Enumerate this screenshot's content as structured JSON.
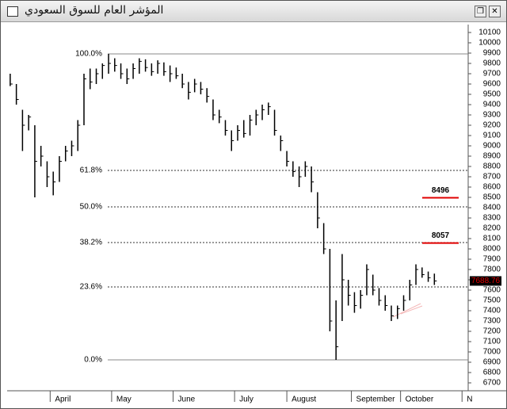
{
  "chart_data": {
    "type": "ohlc",
    "title": "المؤشر العام للسوق السعودي",
    "ylim": [
      6623,
      10177
    ],
    "yticks": [
      6700,
      6800,
      6900,
      7000,
      7100,
      7200,
      7300,
      7400,
      7500,
      7600,
      7700,
      7800,
      7900,
      8000,
      8100,
      8200,
      8300,
      8400,
      8500,
      8600,
      8700,
      8800,
      8900,
      9000,
      9100,
      9200,
      9300,
      9400,
      9500,
      9600,
      9700,
      9800,
      9900,
      10000,
      10100
    ],
    "xlim": [
      -0.5,
      74.5
    ],
    "xticks": [
      {
        "value": 6.5,
        "label": "April"
      },
      {
        "value": 16.5,
        "label": "May"
      },
      {
        "value": 26.5,
        "label": "June"
      },
      {
        "value": 36.5,
        "label": "July"
      },
      {
        "value": 45,
        "label": "August"
      },
      {
        "value": 55.5,
        "label": "September"
      },
      {
        "value": 63.5,
        "label": "October"
      },
      {
        "value": 73.5,
        "label": "N"
      }
    ],
    "bar_color": "#000000",
    "high": [
      9700,
      9600,
      9350,
      9300,
      9200,
      9000,
      8850,
      8750,
      8900,
      9000,
      9050,
      9250,
      9700,
      9750,
      9750,
      9800,
      9892,
      9850,
      9800,
      9750,
      9800,
      9850,
      9840,
      9800,
      9830,
      9810,
      9780,
      9760,
      9700,
      9620,
      9650,
      9620,
      9560,
      9450,
      9350,
      9250,
      9150,
      9200,
      9250,
      9300,
      9350,
      9400,
      9420,
      9350,
      9100,
      8950,
      8850,
      8800,
      8850,
      8800,
      8550,
      8250,
      8000,
      7500,
      7950,
      7700,
      7580,
      7600,
      7850,
      7750,
      7620,
      7550,
      7450,
      7450,
      7550,
      7700,
      7850,
      7820,
      7780,
      7760
    ],
    "low": [
      9580,
      9400,
      8950,
      9150,
      8500,
      8800,
      8600,
      8520,
      8650,
      8850,
      8900,
      8950,
      9200,
      9550,
      9600,
      9650,
      9700,
      9720,
      9650,
      9600,
      9650,
      9700,
      9720,
      9680,
      9700,
      9680,
      9620,
      9650,
      9560,
      9450,
      9520,
      9500,
      9420,
      9250,
      9220,
      9100,
      8950,
      9050,
      9080,
      9100,
      9200,
      9250,
      9300,
      9100,
      8950,
      8800,
      8700,
      8600,
      8700,
      8550,
      8200,
      7950,
      7200,
      6923,
      7300,
      7450,
      7380,
      7420,
      7550,
      7550,
      7450,
      7400,
      7300,
      7320,
      7400,
      7500,
      7650,
      7720,
      7680,
      7650
    ],
    "close": [
      9600,
      9450,
      9200,
      9280,
      8850,
      8900,
      8700,
      8650,
      8850,
      8950,
      9000,
      9200,
      9650,
      9620,
      9700,
      9780,
      9800,
      9780,
      9700,
      9650,
      9750,
      9820,
      9760,
      9720,
      9800,
      9720,
      9700,
      9680,
      9600,
      9520,
      9600,
      9550,
      9480,
      9300,
      9280,
      9150,
      9050,
      9150,
      9120,
      9250,
      9300,
      9350,
      9380,
      9150,
      9050,
      8850,
      8750,
      8700,
      8800,
      8650,
      8300,
      8000,
      7300,
      7050,
      7700,
      7550,
      7450,
      7550,
      7800,
      7600,
      7500,
      7450,
      7350,
      7420,
      7500,
      7650,
      7800,
      7750,
      7720,
      7688.76
    ],
    "levels": [
      {
        "label": "100.0%",
        "value": 9892
      },
      {
        "label": "61.8%",
        "value": 8762
      },
      {
        "label": "50.0%",
        "value": 8408
      },
      {
        "label": "38.2%",
        "value": 8062
      },
      {
        "label": "23.6%",
        "value": 7631
      },
      {
        "label": "0.0%",
        "value": 6923
      }
    ],
    "targets": [
      8496,
      8057
    ],
    "target_color": "#e00000",
    "last_price": 7688.76
  }
}
